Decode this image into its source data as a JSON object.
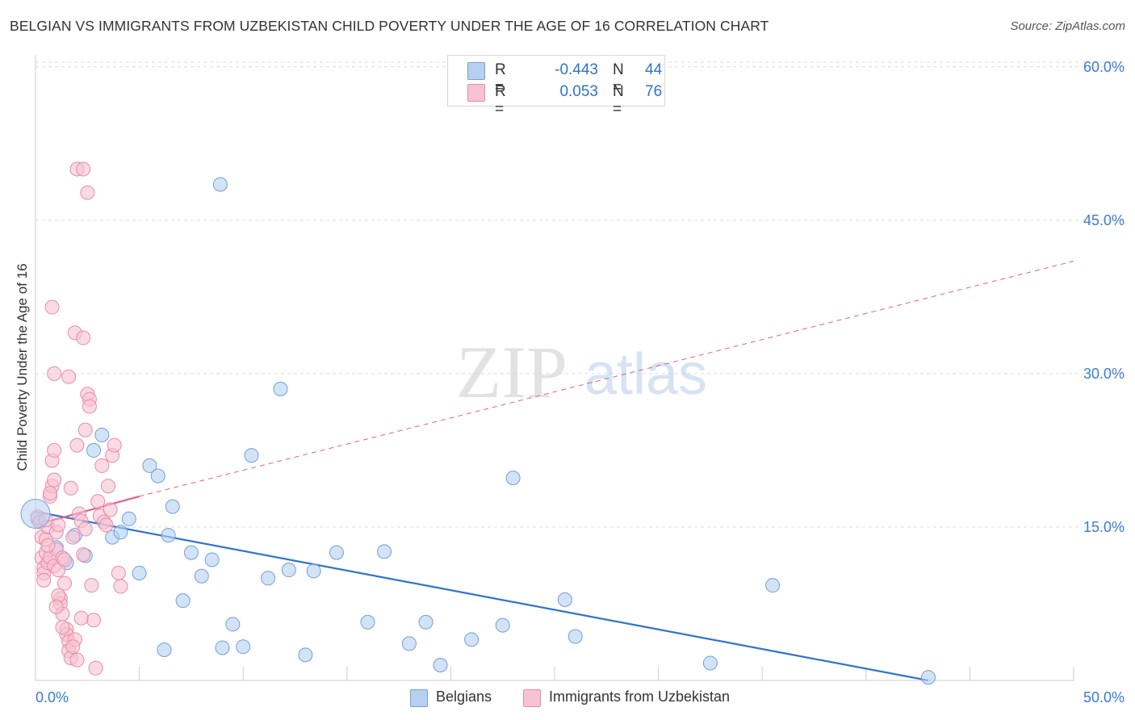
{
  "title": "BELGIAN VS IMMIGRANTS FROM UZBEKISTAN CHILD POVERTY UNDER THE AGE OF 16 CORRELATION CHART",
  "source": "Source: ZipAtlas.com",
  "watermark": {
    "zip": "ZIP",
    "atlas": "atlas"
  },
  "legend": {
    "rows": [
      {
        "r_label": "R =",
        "r_value": "-0.443",
        "n_label": "N =",
        "n_value": "44"
      },
      {
        "r_label": "R =",
        "r_value": "0.053",
        "n_label": "N =",
        "n_value": "76"
      }
    ]
  },
  "bottom_legend": {
    "belgians": "Belgians",
    "uzbekistan": "Immigrants from Uzbekistan"
  },
  "colors": {
    "blue_fill": "#b6d0f0",
    "blue_stroke": "#6f9fdc",
    "blue_line": "#2f73d0",
    "pink_fill": "#f7c3d2",
    "pink_stroke": "#e98aa8",
    "pink_line": "#e0608a",
    "tick_label": "#3d7bd0",
    "grid": "#dcdcdc"
  },
  "chart_data": {
    "type": "scatter",
    "title": "BELGIAN VS IMMIGRANTS FROM UZBEKISTAN CHILD POVERTY UNDER THE AGE OF 16 CORRELATION CHART",
    "xlabel": "",
    "ylabel": "Child Poverty Under the Age of 16",
    "xlim": [
      0,
      50
    ],
    "ylim": [
      0,
      60
    ],
    "x_tick_labels": [
      "0.0%",
      "50.0%"
    ],
    "y_ticks": [
      15,
      30,
      45,
      60
    ],
    "y_tick_labels": [
      "15.0%",
      "30.0%",
      "45.0%",
      "60.0%"
    ],
    "grid": true,
    "legend_position": "top-center",
    "series": [
      {
        "name": "Belgians",
        "color": "#6f9fdc",
        "r": -0.443,
        "n": 44,
        "trend": {
          "x0": 0,
          "y0": 16.5,
          "x1": 43,
          "y1": 0
        },
        "points": [
          [
            0.1,
            15.8
          ],
          [
            1.0,
            13.0
          ],
          [
            1.5,
            11.5
          ],
          [
            1.9,
            14.2
          ],
          [
            2.4,
            12.2
          ],
          [
            2.8,
            22.5
          ],
          [
            3.2,
            24.0
          ],
          [
            3.7,
            14.0
          ],
          [
            4.1,
            14.5
          ],
          [
            4.5,
            15.8
          ],
          [
            5.0,
            10.5
          ],
          [
            5.5,
            21.0
          ],
          [
            5.9,
            20.0
          ],
          [
            6.4,
            14.2
          ],
          [
            6.6,
            17.0
          ],
          [
            7.1,
            7.8
          ],
          [
            7.5,
            12.5
          ],
          [
            8.0,
            10.2
          ],
          [
            8.5,
            11.8
          ],
          [
            9.0,
            3.2
          ],
          [
            9.5,
            5.5
          ],
          [
            10.0,
            3.3
          ],
          [
            10.4,
            22.0
          ],
          [
            11.2,
            10.0
          ],
          [
            11.8,
            28.5
          ],
          [
            12.2,
            10.8
          ],
          [
            13.0,
            2.5
          ],
          [
            13.4,
            10.7
          ],
          [
            14.5,
            12.5
          ],
          [
            16.0,
            5.7
          ],
          [
            16.8,
            12.6
          ],
          [
            18.0,
            3.6
          ],
          [
            18.8,
            5.7
          ],
          [
            19.5,
            1.5
          ],
          [
            21.0,
            4.0
          ],
          [
            22.5,
            5.4
          ],
          [
            23.0,
            19.8
          ],
          [
            25.5,
            7.9
          ],
          [
            26.0,
            4.3
          ],
          [
            32.5,
            1.7
          ],
          [
            35.5,
            9.3
          ],
          [
            43.0,
            0.3
          ],
          [
            8.9,
            48.5
          ],
          [
            6.2,
            3.0
          ]
        ]
      },
      {
        "name": "Immigrants from Uzbekistan",
        "color": "#e98aa8",
        "r": 0.053,
        "n": 76,
        "trend": {
          "x0": 0,
          "y0": 15.2,
          "x1": 5,
          "y1": 18.0,
          "dashed_to": {
            "x": 50,
            "y": 41.0
          }
        },
        "points": [
          [
            0.1,
            16.0
          ],
          [
            0.2,
            15.5
          ],
          [
            0.3,
            14.0
          ],
          [
            0.3,
            12.0
          ],
          [
            0.4,
            11.0
          ],
          [
            0.4,
            10.5
          ],
          [
            0.5,
            12.5
          ],
          [
            0.5,
            13.8
          ],
          [
            0.6,
            15.0
          ],
          [
            0.6,
            11.5
          ],
          [
            0.7,
            12.0
          ],
          [
            0.7,
            18.0
          ],
          [
            0.8,
            19.0
          ],
          [
            0.8,
            21.5
          ],
          [
            0.9,
            22.5
          ],
          [
            0.9,
            11.2
          ],
          [
            1.0,
            12.8
          ],
          [
            1.0,
            14.5
          ],
          [
            1.1,
            15.2
          ],
          [
            1.1,
            10.8
          ],
          [
            1.2,
            8.0
          ],
          [
            1.2,
            7.5
          ],
          [
            1.3,
            6.5
          ],
          [
            1.3,
            12.0
          ],
          [
            1.4,
            11.8
          ],
          [
            1.4,
            9.5
          ],
          [
            1.5,
            5.0
          ],
          [
            1.5,
            4.5
          ],
          [
            1.6,
            3.8
          ],
          [
            1.6,
            2.9
          ],
          [
            1.7,
            2.2
          ],
          [
            1.7,
            18.8
          ],
          [
            1.8,
            14.0
          ],
          [
            1.9,
            4.0
          ],
          [
            2.0,
            2.0
          ],
          [
            2.1,
            16.3
          ],
          [
            2.2,
            15.6
          ],
          [
            2.3,
            12.3
          ],
          [
            2.4,
            24.5
          ],
          [
            2.5,
            28.0
          ],
          [
            2.6,
            27.5
          ],
          [
            2.7,
            9.3
          ],
          [
            2.8,
            5.9
          ],
          [
            2.9,
            1.2
          ],
          [
            3.0,
            17.5
          ],
          [
            3.1,
            16.1
          ],
          [
            3.2,
            21.0
          ],
          [
            3.3,
            15.5
          ],
          [
            3.4,
            15.2
          ],
          [
            3.5,
            19.0
          ],
          [
            3.6,
            16.7
          ],
          [
            3.7,
            22.0
          ],
          [
            3.8,
            23.0
          ],
          [
            4.0,
            10.5
          ],
          [
            4.1,
            9.2
          ],
          [
            0.9,
            30.0
          ],
          [
            1.6,
            29.7
          ],
          [
            1.9,
            34.0
          ],
          [
            2.3,
            33.5
          ],
          [
            0.8,
            36.5
          ],
          [
            2.0,
            50.0
          ],
          [
            2.3,
            50.0
          ],
          [
            2.5,
            47.7
          ],
          [
            2.6,
            26.8
          ],
          [
            2.0,
            23.0
          ],
          [
            0.7,
            18.3
          ],
          [
            0.9,
            19.6
          ],
          [
            1.1,
            8.3
          ],
          [
            1.3,
            5.2
          ],
          [
            1.8,
            3.3
          ],
          [
            2.2,
            6.1
          ],
          [
            2.4,
            14.8
          ],
          [
            0.5,
            15.7
          ],
          [
            0.6,
            13.2
          ],
          [
            0.4,
            9.8
          ],
          [
            1.0,
            7.2
          ]
        ]
      }
    ]
  }
}
